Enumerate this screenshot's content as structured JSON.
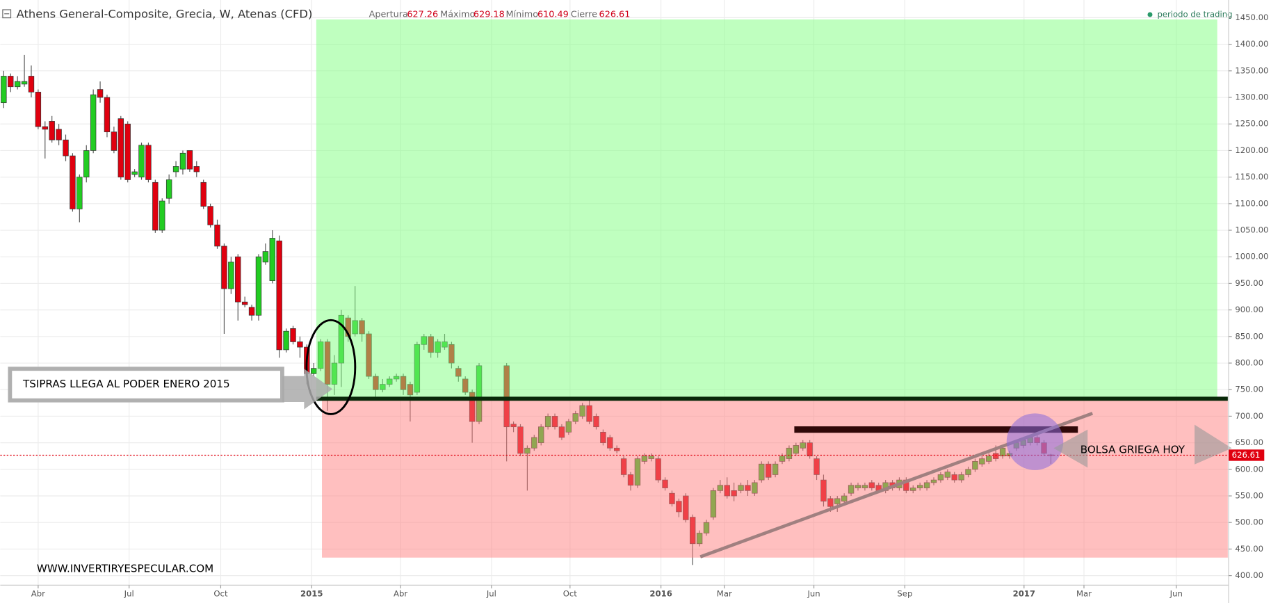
{
  "chart_data": {
    "type": "candlestick",
    "title": "Athens General-Composite, Grecia, W, Atenas (CFD)",
    "open_label": "Apertura",
    "high_label": "Máximo",
    "low_label": "Mínimo",
    "close_label": "Cierre",
    "period_label": "periodo de trading",
    "annotations": [
      "TSIPRAS LLEGA AL PODER ENERO 2015",
      "BOLSA GRIEGA HOY",
      "WWW.INVERTIRYESPECULAR.COM"
    ],
    "up_color": "#22cc22",
    "down_color": "#e0000f",
    "grid": true,
    "xlim": [
      -0.5,
      176.5
    ],
    "xticks": [
      {
        "value": 5.0,
        "label": "Abr"
      },
      {
        "value": 18.2,
        "label": "Jul"
      },
      {
        "value": 31.5,
        "label": "Oct"
      },
      {
        "value": 44.7,
        "label": "2015"
      },
      {
        "value": 57.6,
        "label": "Abr"
      },
      {
        "value": 70.8,
        "label": "Jul"
      },
      {
        "value": 82.2,
        "label": "Oct"
      },
      {
        "value": 95.4,
        "label": "2016"
      },
      {
        "value": 104.6,
        "label": "Mar"
      },
      {
        "value": 117.6,
        "label": "Jun"
      },
      {
        "value": 130.8,
        "label": "Sep"
      },
      {
        "value": 148.1,
        "label": "2017"
      },
      {
        "value": 156.8,
        "label": "Mar"
      },
      {
        "value": 170.2,
        "label": "Jun"
      }
    ],
    "ylim": [
      382,
      1465
    ],
    "yticks": [
      {
        "value": 400,
        "label": "400.00"
      },
      {
        "value": 450,
        "label": "450.00"
      },
      {
        "value": 500,
        "label": "500.00"
      },
      {
        "value": 550,
        "label": "550.00"
      },
      {
        "value": 600,
        "label": "600.00"
      },
      {
        "value": 650,
        "label": "650.00"
      },
      {
        "value": 700,
        "label": "700.00"
      },
      {
        "value": 750,
        "label": "750.00"
      },
      {
        "value": 800,
        "label": "800.00"
      },
      {
        "value": 850,
        "label": "850.00"
      },
      {
        "value": 900,
        "label": "900.00"
      },
      {
        "value": 950,
        "label": "950.00"
      },
      {
        "value": 1000,
        "label": "1000.00"
      },
      {
        "value": 1050,
        "label": "1050.00"
      },
      {
        "value": 1100,
        "label": "1100.00"
      },
      {
        "value": 1150,
        "label": "1150.00"
      },
      {
        "value": 1200,
        "label": "1200.00"
      },
      {
        "value": 1250,
        "label": "1250.00"
      },
      {
        "value": 1300,
        "label": "1300.00"
      },
      {
        "value": 1350,
        "label": "1350.00"
      },
      {
        "value": 1400,
        "label": "1400.00"
      },
      {
        "value": 1450,
        "label": "1450.00"
      }
    ],
    "candles": [
      [
        1290,
        1350,
        1280,
        1340
      ],
      [
        1340,
        1345,
        1310,
        1320
      ],
      [
        1320,
        1340,
        1315,
        1330
      ],
      [
        1325,
        1380,
        1320,
        1330
      ],
      [
        1340,
        1360,
        1300,
        1310
      ],
      [
        1310,
        1315,
        1240,
        1245
      ],
      [
        1245,
        1255,
        1185,
        1240
      ],
      [
        1255,
        1265,
        1215,
        1220
      ],
      [
        1240,
        1250,
        1210,
        1220
      ],
      [
        1220,
        1230,
        1180,
        1190
      ],
      [
        1190,
        1195,
        1085,
        1090
      ],
      [
        1090,
        1155,
        1065,
        1150
      ],
      [
        1150,
        1210,
        1140,
        1200
      ],
      [
        1200,
        1315,
        1195,
        1305
      ],
      [
        1315,
        1330,
        1290,
        1300
      ],
      [
        1300,
        1305,
        1225,
        1235
      ],
      [
        1235,
        1245,
        1195,
        1200
      ],
      [
        1260,
        1265,
        1145,
        1150
      ],
      [
        1250,
        1255,
        1140,
        1145
      ],
      [
        1155,
        1165,
        1150,
        1160
      ],
      [
        1150,
        1215,
        1145,
        1210
      ],
      [
        1210,
        1215,
        1140,
        1145
      ],
      [
        1140,
        1145,
        1045,
        1050
      ],
      [
        1050,
        1110,
        1045,
        1105
      ],
      [
        1110,
        1155,
        1100,
        1145
      ],
      [
        1160,
        1180,
        1150,
        1170
      ],
      [
        1165,
        1200,
        1155,
        1195
      ],
      [
        1200,
        1200,
        1160,
        1165
      ],
      [
        1170,
        1180,
        1150,
        1160
      ],
      [
        1140,
        1145,
        1090,
        1095
      ],
      [
        1095,
        1100,
        1055,
        1060
      ],
      [
        1060,
        1070,
        1015,
        1020
      ],
      [
        1020,
        1025,
        855,
        940
      ],
      [
        940,
        1000,
        930,
        990
      ],
      [
        1000,
        1005,
        880,
        915
      ],
      [
        915,
        925,
        905,
        910
      ],
      [
        905,
        910,
        880,
        890
      ],
      [
        890,
        1005,
        880,
        1000
      ],
      [
        990,
        1025,
        985,
        1010
      ],
      [
        955,
        1050,
        950,
        1035
      ],
      [
        1030,
        1040,
        810,
        825
      ],
      [
        825,
        865,
        820,
        860
      ],
      [
        865,
        870,
        835,
        840
      ],
      [
        840,
        850,
        810,
        830
      ],
      [
        830,
        835,
        760,
        780
      ],
      [
        780,
        800,
        775,
        790
      ],
      [
        790,
        845,
        785,
        840
      ],
      [
        840,
        845,
        710,
        760
      ],
      [
        760,
        815,
        740,
        800
      ],
      [
        800,
        900,
        755,
        890
      ],
      [
        885,
        890,
        840,
        850
      ],
      [
        855,
        945,
        850,
        880
      ],
      [
        880,
        885,
        840,
        855
      ],
      [
        855,
        860,
        770,
        775
      ],
      [
        775,
        780,
        730,
        750
      ],
      [
        750,
        770,
        745,
        760
      ],
      [
        760,
        775,
        755,
        770
      ],
      [
        770,
        780,
        765,
        775
      ],
      [
        775,
        780,
        740,
        750
      ],
      [
        760,
        765,
        690,
        740
      ],
      [
        745,
        840,
        740,
        835
      ],
      [
        835,
        855,
        825,
        850
      ],
      [
        850,
        855,
        810,
        820
      ],
      [
        820,
        845,
        810,
        840
      ],
      [
        830,
        855,
        825,
        840
      ],
      [
        835,
        840,
        790,
        800
      ],
      [
        790,
        795,
        765,
        775
      ],
      [
        770,
        775,
        740,
        745
      ],
      [
        745,
        750,
        650,
        690
      ],
      [
        690,
        800,
        685,
        795
      ],
      null,
      null,
      null,
      [
        795,
        800,
        615,
        680
      ],
      [
        685,
        690,
        670,
        680
      ],
      [
        680,
        685,
        625,
        630
      ],
      [
        630,
        645,
        560,
        640
      ],
      [
        640,
        665,
        635,
        660
      ],
      [
        650,
        685,
        645,
        680
      ],
      [
        680,
        705,
        675,
        700
      ],
      [
        700,
        705,
        675,
        680
      ],
      [
        680,
        685,
        655,
        660
      ],
      [
        670,
        695,
        665,
        690
      ],
      [
        690,
        710,
        685,
        705
      ],
      [
        700,
        725,
        695,
        720
      ],
      [
        720,
        730,
        685,
        690
      ],
      [
        700,
        705,
        675,
        680
      ],
      [
        670,
        675,
        645,
        650
      ],
      [
        660,
        665,
        635,
        640
      ],
      [
        640,
        645,
        630,
        635
      ],
      [
        620,
        625,
        585,
        590
      ],
      [
        590,
        595,
        560,
        570
      ],
      [
        570,
        625,
        565,
        620
      ],
      [
        615,
        630,
        610,
        625
      ],
      [
        620,
        630,
        615,
        625
      ],
      [
        620,
        625,
        575,
        580
      ],
      [
        580,
        585,
        560,
        565
      ],
      [
        555,
        560,
        530,
        535
      ],
      [
        540,
        545,
        510,
        520
      ],
      [
        550,
        555,
        500,
        505
      ],
      [
        510,
        515,
        420,
        460
      ],
      [
        460,
        485,
        455,
        480
      ],
      [
        480,
        505,
        475,
        500
      ],
      [
        510,
        565,
        505,
        560
      ],
      [
        560,
        580,
        555,
        570
      ],
      [
        570,
        585,
        545,
        550
      ],
      [
        560,
        575,
        540,
        550
      ],
      [
        560,
        575,
        555,
        570
      ],
      [
        570,
        580,
        550,
        560
      ],
      [
        555,
        580,
        550,
        575
      ],
      [
        580,
        615,
        575,
        610
      ],
      [
        610,
        615,
        580,
        585
      ],
      [
        590,
        615,
        585,
        610
      ],
      [
        615,
        630,
        610,
        625
      ],
      [
        620,
        645,
        615,
        640
      ],
      [
        630,
        650,
        625,
        645
      ],
      [
        640,
        655,
        635,
        650
      ],
      [
        650,
        655,
        620,
        625
      ],
      [
        620,
        625,
        580,
        590
      ],
      [
        580,
        590,
        530,
        540
      ],
      [
        545,
        550,
        520,
        530
      ],
      [
        535,
        550,
        520,
        545
      ],
      [
        540,
        555,
        535,
        550
      ],
      [
        555,
        575,
        550,
        570
      ],
      [
        565,
        575,
        560,
        570
      ],
      [
        565,
        575,
        560,
        570
      ],
      [
        575,
        580,
        560,
        565
      ],
      [
        570,
        575,
        555,
        560
      ],
      [
        560,
        580,
        555,
        575
      ],
      [
        575,
        580,
        560,
        565
      ],
      [
        565,
        585,
        560,
        580
      ],
      [
        580,
        585,
        555,
        560
      ],
      [
        560,
        570,
        555,
        565
      ],
      [
        565,
        575,
        560,
        570
      ],
      [
        565,
        580,
        560,
        575
      ],
      [
        575,
        585,
        570,
        580
      ],
      [
        580,
        595,
        575,
        590
      ],
      [
        585,
        600,
        580,
        595
      ],
      [
        590,
        595,
        575,
        580
      ],
      [
        580,
        595,
        575,
        590
      ],
      [
        590,
        605,
        585,
        600
      ],
      [
        600,
        620,
        595,
        615
      ],
      [
        610,
        625,
        605,
        620
      ],
      [
        615,
        630,
        610,
        625
      ],
      [
        630,
        645,
        615,
        620
      ],
      [
        625,
        645,
        620,
        640
      ],
      [
        625,
        635,
        620,
        630
      ],
      [
        640,
        655,
        635,
        650
      ],
      [
        645,
        660,
        640,
        655
      ],
      [
        650,
        665,
        645,
        660
      ],
      [
        660,
        665,
        645,
        650
      ],
      [
        650,
        655,
        625,
        630
      ],
      [
        627.26,
        629.18,
        610.49,
        626.61
      ]
    ]
  }
}
